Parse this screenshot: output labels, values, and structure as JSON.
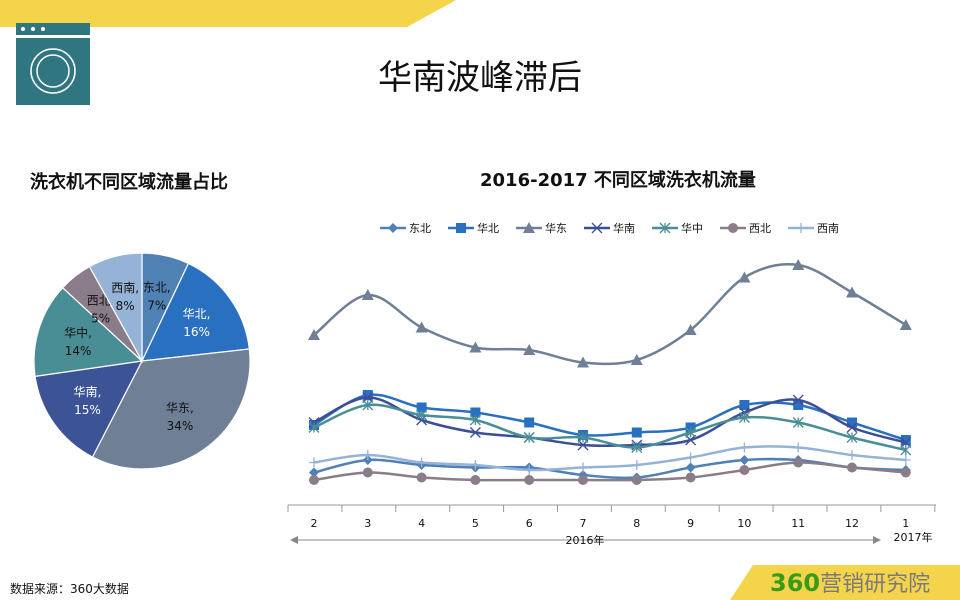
{
  "header": {
    "title": "华南波峰滞后",
    "accent_color": "#f4d44a",
    "icon": "washing-machine-icon",
    "icon_color": "#2f7680"
  },
  "footer": {
    "source": "数据来源：360大数据",
    "logo_num": "360",
    "logo_text": "营销研究院"
  },
  "chart_data": [
    {
      "type": "pie",
      "title": "洗衣机不同区域流量占比",
      "slices": [
        {
          "label": "东北",
          "value": 7,
          "display": "7%",
          "color": "#4f81b5",
          "text_color": "#111"
        },
        {
          "label": "华北",
          "value": 16,
          "display": "16%",
          "color": "#2970c0",
          "text_color": "#fff"
        },
        {
          "label": "华东",
          "value": 34,
          "display": "34%",
          "color": "#6f7f95",
          "text_color": "#111"
        },
        {
          "label": "华南",
          "value": 15,
          "display": "15%",
          "color": "#3c5496",
          "text_color": "#fff"
        },
        {
          "label": "华中",
          "value": 14,
          "display": "14%",
          "color": "#4a8e95",
          "text_color": "#111"
        },
        {
          "label": "西北",
          "value": 5,
          "display": "5%",
          "color": "#8a7c89",
          "text_color": "#111"
        },
        {
          "label": "西南",
          "value": 8,
          "display": "8%",
          "color": "#95b3d7",
          "text_color": "#111"
        }
      ]
    },
    {
      "type": "line",
      "title": "2016-2017 不同区域洗衣机流量",
      "categories": [
        "2",
        "3",
        "4",
        "5",
        "6",
        "7",
        "8",
        "9",
        "10",
        "11",
        "12",
        "1"
      ],
      "year_labels": [
        "2016年",
        "2017年"
      ],
      "legend_position": "top",
      "ylim": [
        0,
        100
      ],
      "grid": false,
      "series": [
        {
          "name": "东北",
          "color": "#4f81b5",
          "marker": "diamond",
          "values": [
            13,
            18,
            16,
            15,
            15,
            12,
            11,
            15,
            18,
            18,
            15,
            14
          ]
        },
        {
          "name": "华北",
          "color": "#2970c0",
          "marker": "square",
          "values": [
            32,
            44,
            39,
            37,
            33,
            28,
            29,
            31,
            40,
            40,
            33,
            26
          ]
        },
        {
          "name": "华东",
          "color": "#6f7f95",
          "marker": "triangle",
          "values": [
            68,
            84,
            71,
            63,
            62,
            57,
            58,
            70,
            91,
            96,
            85,
            72
          ]
        },
        {
          "name": "华南",
          "color": "#3c4e96",
          "marker": "x",
          "values": [
            33,
            43,
            34,
            29,
            27,
            24,
            24,
            26,
            37,
            42,
            31,
            25
          ]
        },
        {
          "name": "华中",
          "color": "#4a8e95",
          "marker": "star",
          "values": [
            31,
            40,
            36,
            34,
            27,
            27,
            23,
            29,
            35,
            33,
            27,
            22
          ]
        },
        {
          "name": "西北",
          "color": "#8a7c89",
          "marker": "circle",
          "values": [
            10,
            13,
            11,
            10,
            10,
            10,
            10,
            11,
            14,
            17,
            15,
            13
          ]
        },
        {
          "name": "西南",
          "color": "#95b3d7",
          "marker": "plus",
          "values": [
            17,
            20,
            17,
            16,
            14,
            15,
            16,
            19,
            23,
            23,
            20,
            18
          ]
        }
      ]
    }
  ]
}
